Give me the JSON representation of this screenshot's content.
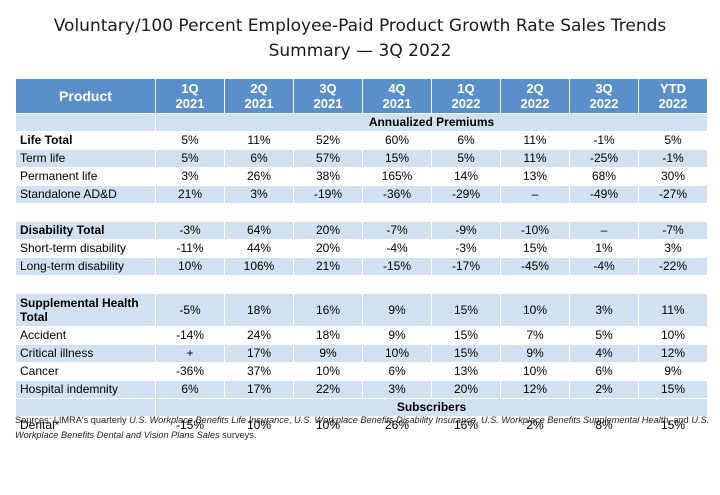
{
  "title": {
    "line1": "Voluntary/100 Percent Employee-Paid Product Growth Rate Sales Trends",
    "line2": "Summary — 3Q 2022"
  },
  "table": {
    "header": {
      "product": "Product",
      "columns": [
        {
          "q": "1Q",
          "y": "2021"
        },
        {
          "q": "2Q",
          "y": "2021"
        },
        {
          "q": "3Q",
          "y": "2021"
        },
        {
          "q": "4Q",
          "y": "2021"
        },
        {
          "q": "1Q",
          "y": "2022"
        },
        {
          "q": "2Q",
          "y": "2022"
        },
        {
          "q": "3Q",
          "y": "2022"
        },
        {
          "q": "YTD",
          "y": "2022"
        }
      ]
    },
    "section_annualized": "Annualized Premiums",
    "section_subscribers": "Subscribers",
    "rows": {
      "life_total": {
        "label": "Life Total",
        "v": [
          "5%",
          "11%",
          "52%",
          "60%",
          "6%",
          "11%",
          "-1%",
          "5%"
        ]
      },
      "term_life": {
        "label": "Term life",
        "v": [
          "5%",
          "6%",
          "57%",
          "15%",
          "5%",
          "11%",
          "-25%",
          "-1%"
        ]
      },
      "permanent_life": {
        "label": "Permanent life",
        "v": [
          "3%",
          "26%",
          "38%",
          "165%",
          "14%",
          "13%",
          "68%",
          "30%"
        ]
      },
      "standalone_add": {
        "label": "Standalone AD&D",
        "v": [
          "21%",
          "3%",
          "-19%",
          "-36%",
          "-29%",
          "–",
          "-49%",
          "-27%"
        ]
      },
      "disability_total": {
        "label": "Disability Total",
        "v": [
          "-3%",
          "64%",
          "20%",
          "-7%",
          "-9%",
          "-10%",
          "–",
          "-7%"
        ]
      },
      "short_term": {
        "label": "Short-term disability",
        "v": [
          "-11%",
          "44%",
          "20%",
          "-4%",
          "-3%",
          "15%",
          "1%",
          "3%"
        ]
      },
      "long_term": {
        "label": "Long-term disability",
        "v": [
          "10%",
          "106%",
          "21%",
          "-15%",
          "-17%",
          "-45%",
          "-4%",
          "-22%"
        ]
      },
      "supp_health_total": {
        "label": "Supplemental Health Total",
        "v": [
          "-5%",
          "18%",
          "16%",
          "9%",
          "15%",
          "10%",
          "3%",
          "11%"
        ]
      },
      "accident": {
        "label": "Accident",
        "v": [
          "-14%",
          "24%",
          "18%",
          "9%",
          "15%",
          "7%",
          "5%",
          "10%"
        ]
      },
      "critical_illness": {
        "label": "Critical illness",
        "v": [
          "+",
          "17%",
          "9%",
          "10%",
          "15%",
          "9%",
          "4%",
          "12%"
        ]
      },
      "cancer": {
        "label": "Cancer",
        "v": [
          "-36%",
          "37%",
          "10%",
          "6%",
          "13%",
          "10%",
          "6%",
          "9%"
        ]
      },
      "hospital_indemnity": {
        "label": "Hospital indemnity",
        "v": [
          "6%",
          "17%",
          "22%",
          "3%",
          "20%",
          "12%",
          "2%",
          "15%"
        ]
      },
      "dental": {
        "label": "Dental*",
        "v": [
          "-15%",
          "10%",
          "10%",
          "26%",
          "16%",
          "2%",
          "8%",
          "15%"
        ]
      }
    }
  },
  "sources": {
    "prefix": "Sources: LIMRA's quarterly ",
    "s1": "U.S. Workplace Benefits Life Insurance",
    "sep1": ", ",
    "s2": "U.S. Workplace Benefits Disability Insurance",
    "sep2": ", ",
    "s3": "U.S. Workplace Benefits Supplemental Health",
    "sep3": ", and ",
    "s4": "U.S. Workplace Benefits Dental and Vision Plans Sales",
    "suffix": " surveys."
  },
  "colors": {
    "header_bg": "#5b8fc9",
    "band_bg": "#d2e1f2"
  }
}
